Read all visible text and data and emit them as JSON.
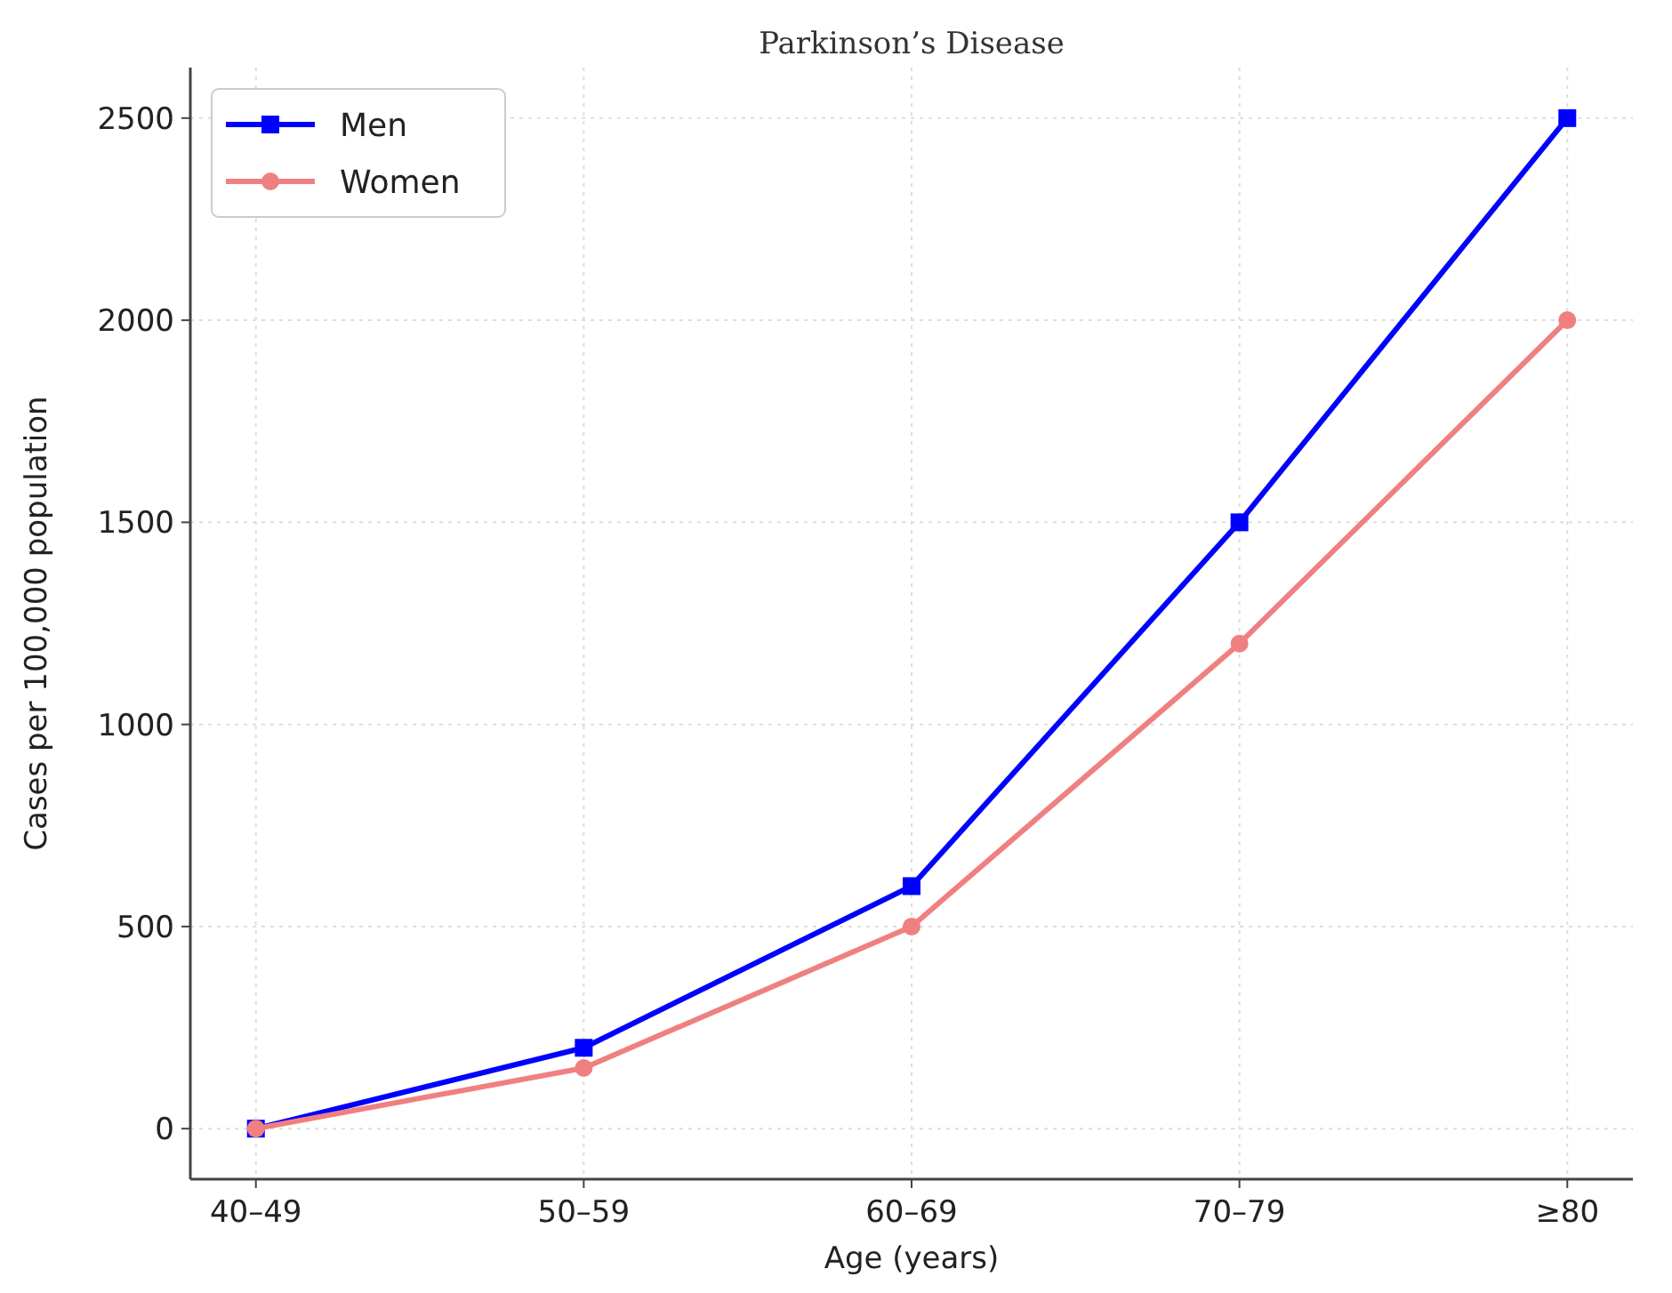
{
  "chart_data": {
    "type": "line",
    "title": "Parkinson’s Disease",
    "xlabel": "Age (years)",
    "ylabel": "Cases per 100,000 population",
    "categories": [
      "40–49",
      "50–59",
      "60–69",
      "70–79",
      "≥80"
    ],
    "series": [
      {
        "name": "Men",
        "color": "#0000ff",
        "marker": "square",
        "values": [
          0,
          200,
          600,
          1500,
          2500
        ]
      },
      {
        "name": "Women",
        "color": "#f08080",
        "marker": "circle",
        "values": [
          0,
          150,
          500,
          1200,
          2000
        ]
      }
    ],
    "ylim": [
      -125,
      2625
    ],
    "yticks": [
      0,
      500,
      1000,
      1500,
      2000,
      2500
    ],
    "grid": true,
    "legend": "top left",
    "line_style": "solid"
  }
}
